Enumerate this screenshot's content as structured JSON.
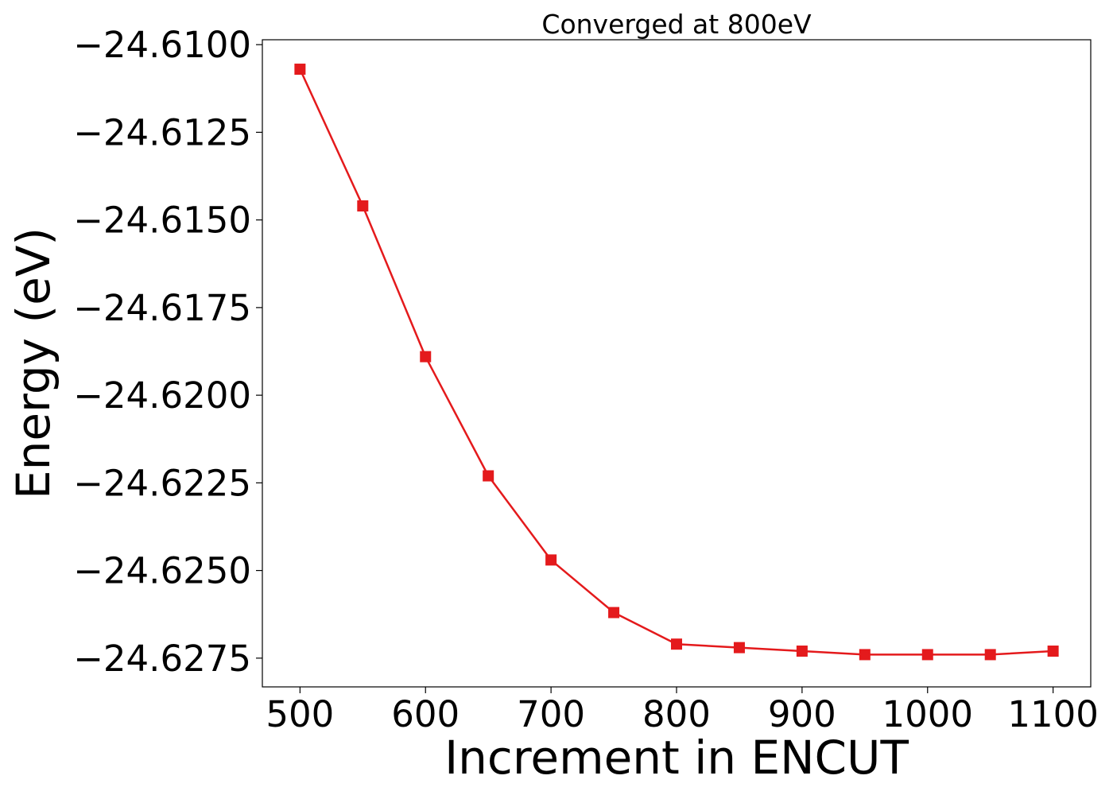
{
  "chart_data": {
    "type": "line",
    "title": "Converged at 800eV",
    "xlabel": "Increment in ENCUT",
    "ylabel": "Energy (eV)",
    "x": [
      500,
      550,
      600,
      650,
      700,
      750,
      800,
      850,
      900,
      950,
      1000,
      1050,
      1100
    ],
    "series": [
      {
        "values": [
          -24.6107,
          -24.6146,
          -24.6189,
          -24.6223,
          -24.6247,
          -24.6262,
          -24.6271,
          -24.6272,
          -24.6273,
          -24.6274,
          -24.6274,
          -24.6274,
          -24.6273
        ],
        "color": "#e41a1c",
        "marker": "square"
      }
    ],
    "xticks": [
      500,
      600,
      700,
      800,
      900,
      1000,
      1100
    ],
    "xtick_labels": [
      "500",
      "600",
      "700",
      "800",
      "900",
      "1000",
      "1100"
    ],
    "yticks": [
      -24.61,
      -24.6125,
      -24.615,
      -24.6175,
      -24.62,
      -24.6225,
      -24.625,
      -24.6275
    ],
    "ytick_labels": [
      "−24.6100",
      "−24.6125",
      "−24.6150",
      "−24.6175",
      "−24.6200",
      "−24.6225",
      "−24.6250",
      "−24.6275"
    ],
    "xlim": [
      470,
      1130
    ],
    "ylim": [
      -24.62832,
      -24.60986
    ],
    "grid": false,
    "legend": "none"
  }
}
